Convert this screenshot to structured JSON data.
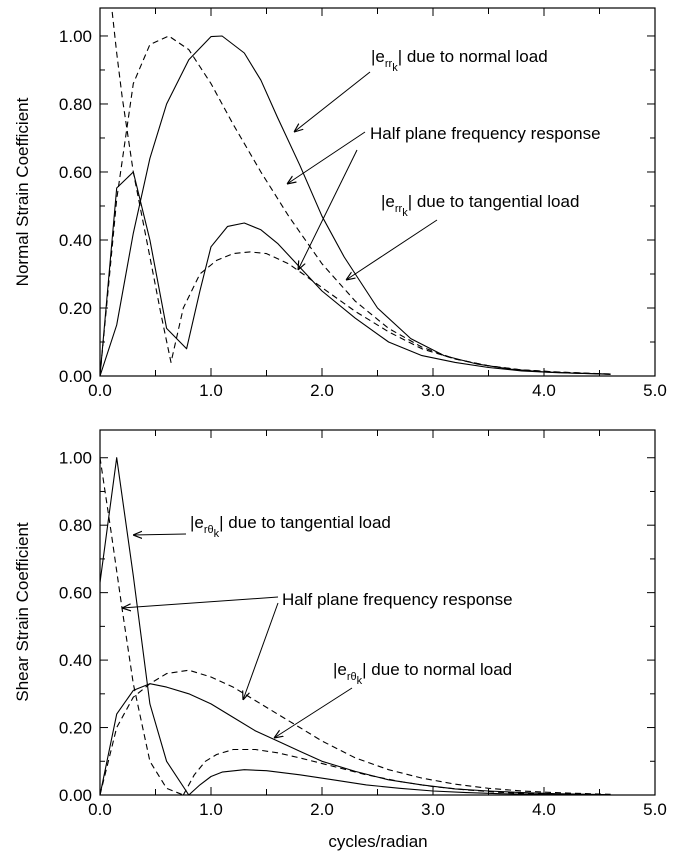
{
  "chart_data": [
    {
      "type": "line",
      "ylabel": "Normal Strain Coefficient",
      "xlim": [
        0,
        5
      ],
      "ylim": [
        0,
        1.0
      ],
      "xticks": [
        "0.0",
        "1.0",
        "2.0",
        "3.0",
        "4.0",
        "5.0"
      ],
      "yticks": [
        "0.00",
        "0.20",
        "0.40",
        "0.60",
        "0.80",
        "1.00"
      ],
      "grid": false,
      "series": [
        {
          "style": "solid",
          "x": [
            0.0,
            0.15,
            0.3,
            0.45,
            0.6,
            0.8,
            1.0,
            1.1,
            1.3,
            1.45,
            1.6,
            1.8,
            2.0,
            2.2,
            2.5,
            2.8,
            3.1,
            3.4,
            3.7,
            4.0,
            4.3,
            4.6
          ],
          "y": [
            0.0,
            0.15,
            0.42,
            0.64,
            0.8,
            0.93,
            0.998,
            1.0,
            0.95,
            0.87,
            0.76,
            0.62,
            0.47,
            0.35,
            0.2,
            0.11,
            0.06,
            0.035,
            0.02,
            0.012,
            0.008,
            0.006
          ]
        },
        {
          "style": "dashed",
          "x": [
            0.0,
            0.15,
            0.3,
            0.45,
            0.62,
            0.8,
            1.0,
            1.2,
            1.45,
            1.7,
            2.0,
            2.3,
            2.6,
            2.9,
            3.2,
            3.5,
            3.8,
            4.1,
            4.4,
            4.6
          ],
          "y": [
            0.0,
            0.52,
            0.86,
            0.975,
            1.0,
            0.96,
            0.86,
            0.74,
            0.6,
            0.47,
            0.33,
            0.22,
            0.14,
            0.085,
            0.05,
            0.03,
            0.018,
            0.012,
            0.008,
            0.006
          ]
        },
        {
          "style": "solid",
          "x": [
            0.0,
            0.15,
            0.3,
            0.45,
            0.6,
            0.78,
            0.9,
            1.0,
            1.15,
            1.3,
            1.45,
            1.6,
            1.8,
            2.0,
            2.3,
            2.6,
            2.9,
            3.2,
            3.5,
            3.8,
            4.1,
            4.4,
            4.6
          ],
          "y": [
            0.0,
            0.553,
            0.6,
            0.4,
            0.14,
            0.08,
            0.25,
            0.38,
            0.44,
            0.45,
            0.43,
            0.39,
            0.32,
            0.25,
            0.17,
            0.1,
            0.06,
            0.04,
            0.025,
            0.015,
            0.01,
            0.007,
            0.005
          ]
        },
        {
          "style": "dashed",
          "x": [
            0.1,
            0.15,
            0.2,
            0.3,
            0.45,
            0.55,
            0.64,
            0.75,
            0.9,
            1.05,
            1.2,
            1.35,
            1.5,
            1.7,
            2.0,
            2.3,
            2.6,
            2.9,
            3.2,
            3.5,
            3.8,
            4.1,
            4.4,
            4.6
          ],
          "y": [
            1.1,
            0.95,
            0.82,
            0.6,
            0.35,
            0.18,
            0.04,
            0.2,
            0.3,
            0.34,
            0.36,
            0.365,
            0.36,
            0.33,
            0.26,
            0.19,
            0.13,
            0.08,
            0.05,
            0.03,
            0.018,
            0.012,
            0.008,
            0.005
          ]
        }
      ],
      "annotations": [
        {
          "prefix": "|e",
          "sub": "rr",
          "subsub": "k",
          "suffix": "| due to normal load"
        },
        {
          "text": "Half plane frequency response"
        },
        {
          "prefix": "|e",
          "sub": "rr",
          "subsub": "k",
          "suffix": "| due to tangential load"
        }
      ]
    },
    {
      "type": "line",
      "xlabel": "cycles/radian",
      "ylabel": "Shear Strain Coefficient",
      "xlim": [
        0,
        5
      ],
      "ylim": [
        0,
        1.0
      ],
      "xticks": [
        "0.0",
        "1.0",
        "2.0",
        "3.0",
        "4.0",
        "5.0"
      ],
      "yticks": [
        "0.00",
        "0.20",
        "0.40",
        "0.60",
        "0.80",
        "1.00"
      ],
      "grid": false,
      "series": [
        {
          "style": "solid",
          "x": [
            0.0,
            0.15,
            0.3,
            0.45,
            0.6,
            0.8,
            1.0
          ],
          "y": [
            0.63,
            1.0,
            0.65,
            0.27,
            0.1,
            0.0,
            0.0
          ]
        },
        {
          "style": "dashed",
          "x": [
            0.0,
            0.1,
            0.2,
            0.3,
            0.45,
            0.6,
            0.75
          ],
          "y": [
            1.0,
            0.78,
            0.55,
            0.33,
            0.1,
            0.02,
            0.0
          ]
        },
        {
          "style": "solid",
          "x": [
            0.0,
            0.15,
            0.3,
            0.45,
            0.6,
            0.8,
            1.0,
            1.2,
            1.4,
            1.6,
            1.8,
            2.0,
            2.3,
            2.6,
            2.9,
            3.2,
            3.5,
            3.8,
            4.1,
            4.4,
            4.6
          ],
          "y": [
            0.0,
            0.24,
            0.31,
            0.33,
            0.32,
            0.3,
            0.27,
            0.23,
            0.19,
            0.16,
            0.13,
            0.1,
            0.07,
            0.045,
            0.03,
            0.018,
            0.012,
            0.007,
            0.004,
            0.002,
            0.001
          ]
        },
        {
          "style": "dashed",
          "x": [
            0.0,
            0.15,
            0.3,
            0.45,
            0.6,
            0.8,
            1.0,
            1.2,
            1.4,
            1.6,
            1.8,
            2.0,
            2.3,
            2.6,
            2.9,
            3.2,
            3.5,
            3.8,
            4.1,
            4.4,
            4.6
          ],
          "y": [
            0.0,
            0.2,
            0.29,
            0.33,
            0.36,
            0.37,
            0.35,
            0.32,
            0.28,
            0.24,
            0.2,
            0.16,
            0.11,
            0.075,
            0.05,
            0.032,
            0.02,
            0.012,
            0.007,
            0.004,
            0.002
          ]
        },
        {
          "style": "solid",
          "x": [
            0.8,
            0.9,
            1.0,
            1.1,
            1.3,
            1.5,
            1.8,
            2.1,
            2.4,
            2.7,
            3.0,
            3.3,
            3.6,
            3.9,
            4.2,
            4.6
          ],
          "y": [
            0.0,
            0.03,
            0.055,
            0.068,
            0.075,
            0.072,
            0.06,
            0.045,
            0.03,
            0.02,
            0.012,
            0.007,
            0.004,
            0.002,
            0.001,
            0.0
          ]
        },
        {
          "style": "dashed",
          "x": [
            0.75,
            0.85,
            0.95,
            1.05,
            1.2,
            1.4,
            1.6,
            1.8,
            2.1,
            2.4,
            2.7,
            3.0,
            3.3,
            3.6,
            3.9,
            4.2,
            4.6
          ],
          "y": [
            0.0,
            0.06,
            0.1,
            0.12,
            0.135,
            0.135,
            0.125,
            0.11,
            0.085,
            0.06,
            0.04,
            0.025,
            0.015,
            0.008,
            0.004,
            0.002,
            0.0
          ]
        }
      ],
      "annotations": [
        {
          "prefix": "|e",
          "sub": "rθ",
          "subsub": "k",
          "suffix": "| due to tangential load"
        },
        {
          "text": "Half plane frequency response"
        },
        {
          "prefix": "|e",
          "sub": "rθ",
          "subsub": "k",
          "suffix": "| due to normal load"
        }
      ]
    }
  ]
}
